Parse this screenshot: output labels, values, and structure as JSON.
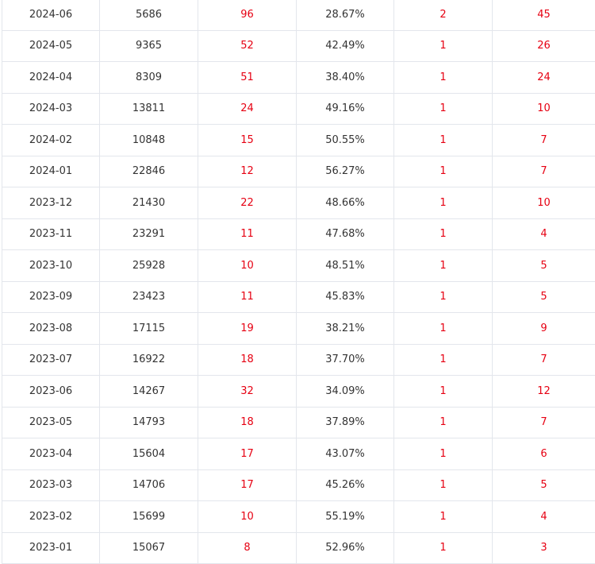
{
  "colors": {
    "text": "#333333",
    "highlight": "#e60012",
    "border": "#e3e6ec"
  },
  "table": {
    "rows": [
      [
        "2024-06",
        "5686",
        "96",
        "28.67%",
        "2",
        "45"
      ],
      [
        "2024-05",
        "9365",
        "52",
        "42.49%",
        "1",
        "26"
      ],
      [
        "2024-04",
        "8309",
        "51",
        "38.40%",
        "1",
        "24"
      ],
      [
        "2024-03",
        "13811",
        "24",
        "49.16%",
        "1",
        "10"
      ],
      [
        "2024-02",
        "10848",
        "15",
        "50.55%",
        "1",
        "7"
      ],
      [
        "2024-01",
        "22846",
        "12",
        "56.27%",
        "1",
        "7"
      ],
      [
        "2023-12",
        "21430",
        "22",
        "48.66%",
        "1",
        "10"
      ],
      [
        "2023-11",
        "23291",
        "11",
        "47.68%",
        "1",
        "4"
      ],
      [
        "2023-10",
        "25928",
        "10",
        "48.51%",
        "1",
        "5"
      ],
      [
        "2023-09",
        "23423",
        "11",
        "45.83%",
        "1",
        "5"
      ],
      [
        "2023-08",
        "17115",
        "19",
        "38.21%",
        "1",
        "9"
      ],
      [
        "2023-07",
        "16922",
        "18",
        "37.70%",
        "1",
        "7"
      ],
      [
        "2023-06",
        "14267",
        "32",
        "34.09%",
        "1",
        "12"
      ],
      [
        "2023-05",
        "14793",
        "18",
        "37.89%",
        "1",
        "7"
      ],
      [
        "2023-04",
        "15604",
        "17",
        "43.07%",
        "1",
        "6"
      ],
      [
        "2023-03",
        "14706",
        "17",
        "45.26%",
        "1",
        "5"
      ],
      [
        "2023-02",
        "15699",
        "10",
        "55.19%",
        "1",
        "4"
      ],
      [
        "2023-01",
        "15067",
        "8",
        "52.96%",
        "1",
        "3"
      ]
    ]
  }
}
